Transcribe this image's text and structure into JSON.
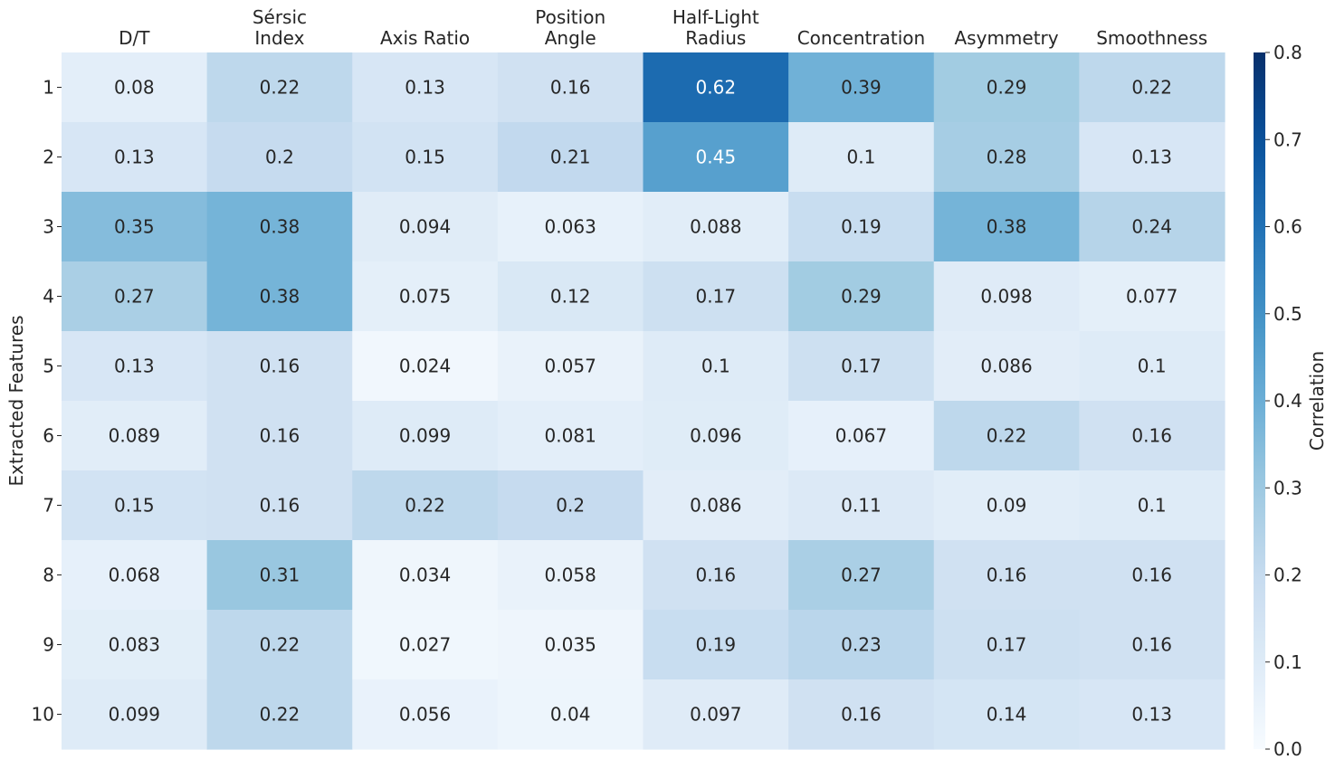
{
  "chart_data": {
    "type": "heatmap",
    "columns": [
      [
        "D/T"
      ],
      [
        "Sérsic",
        "Index"
      ],
      [
        "Axis Ratio"
      ],
      [
        "Position",
        "Angle"
      ],
      [
        "Half-Light",
        "Radius"
      ],
      [
        "Concentration"
      ],
      [
        "Asymmetry"
      ],
      [
        "Smoothness"
      ]
    ],
    "rows": [
      "1",
      "2",
      "3",
      "4",
      "5",
      "6",
      "7",
      "8",
      "9",
      "10"
    ],
    "values": [
      [
        0.08,
        0.22,
        0.13,
        0.16,
        0.62,
        0.39,
        0.29,
        0.22
      ],
      [
        0.13,
        0.2,
        0.15,
        0.21,
        0.45,
        0.1,
        0.28,
        0.13
      ],
      [
        0.35,
        0.38,
        0.094,
        0.063,
        0.088,
        0.19,
        0.38,
        0.24
      ],
      [
        0.27,
        0.38,
        0.075,
        0.12,
        0.17,
        0.29,
        0.098,
        0.077
      ],
      [
        0.13,
        0.16,
        0.024,
        0.057,
        0.1,
        0.17,
        0.086,
        0.1
      ],
      [
        0.089,
        0.16,
        0.099,
        0.081,
        0.096,
        0.067,
        0.22,
        0.16
      ],
      [
        0.15,
        0.16,
        0.22,
        0.2,
        0.086,
        0.11,
        0.09,
        0.1
      ],
      [
        0.068,
        0.31,
        0.034,
        0.058,
        0.16,
        0.27,
        0.16,
        0.16
      ],
      [
        0.083,
        0.22,
        0.027,
        0.035,
        0.19,
        0.23,
        0.17,
        0.16
      ],
      [
        0.099,
        0.22,
        0.056,
        0.04,
        0.097,
        0.16,
        0.14,
        0.13
      ]
    ],
    "ylabel": "Extracted Features",
    "colorbar_label": "Correlation",
    "vmin": 0.0,
    "vmax": 0.8,
    "colorbar_ticks": [
      "0.0",
      "0.1",
      "0.2",
      "0.3",
      "0.4",
      "0.5",
      "0.6",
      "0.7",
      "0.8"
    ],
    "colormap": "Blues",
    "label_color_dark": "#262626",
    "label_color_light": "#ffffff"
  }
}
